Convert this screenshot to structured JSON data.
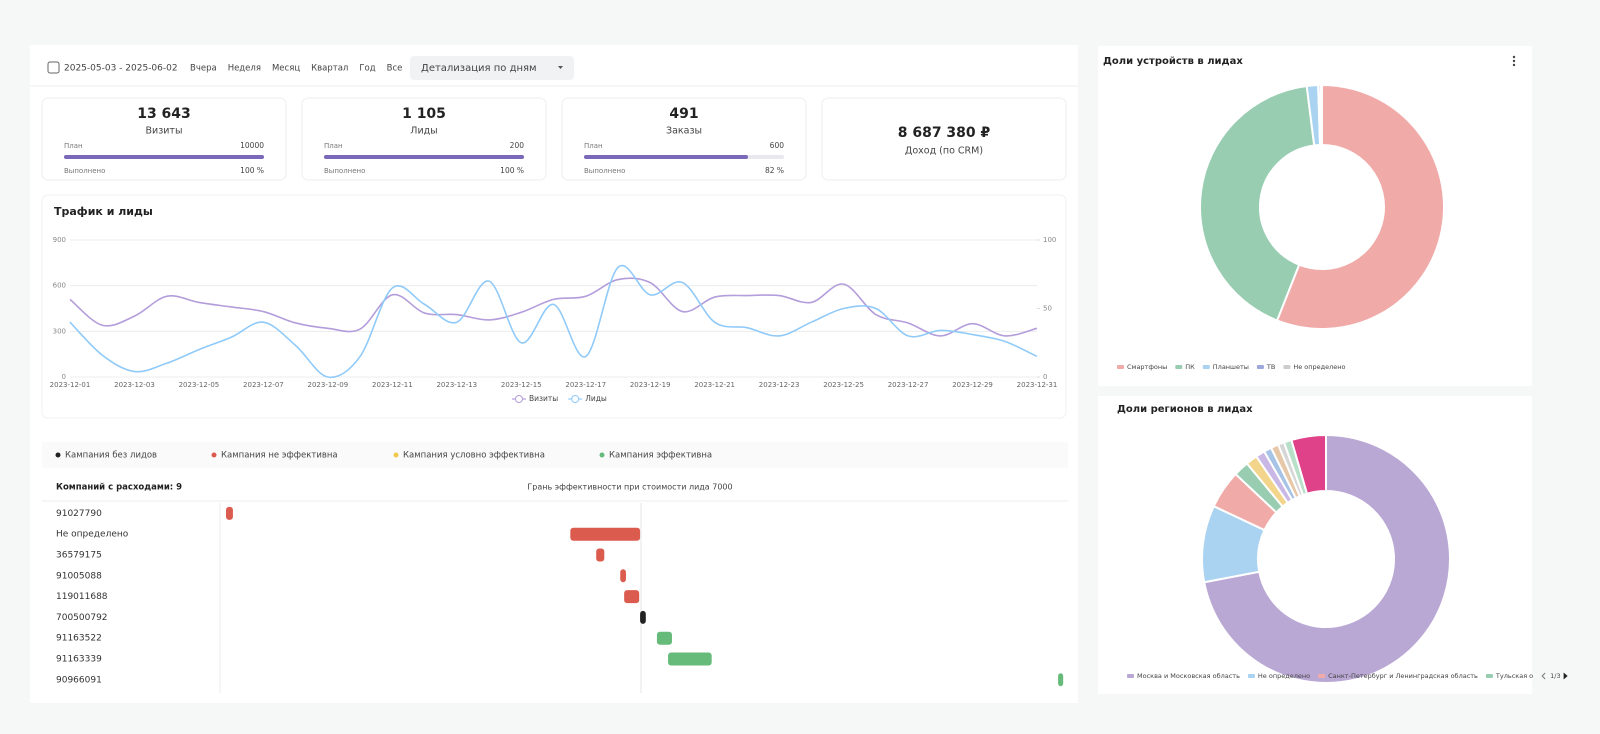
{
  "toolbar": {
    "date_range": "2025-05-03 - 2025-06-02",
    "periods": [
      "Вчера",
      "Неделя",
      "Месяц",
      "Квартал",
      "Год",
      "Все"
    ],
    "detail": "Детализация по дням"
  },
  "kpis": [
    {
      "value": "13 643",
      "label": "Визиты",
      "plan_label": "План",
      "plan": 10000,
      "done_label": "Выполнено",
      "done": {
        "value": 100,
        "label": "100 %"
      }
    },
    {
      "value": "1 105",
      "label": "Лиды",
      "plan_label": "План",
      "plan": 200,
      "done_label": "Выполнено",
      "done": {
        "value": 100,
        "label": "100 %"
      }
    },
    {
      "value": "491",
      "label": "Заказы",
      "plan_label": "План",
      "plan": 600,
      "done_label": "Выполнено",
      "done": {
        "value": 82,
        "label": "82 %"
      }
    },
    {
      "value": "8 687 380 ₽",
      "label": "Доход (по CRM)"
    }
  ],
  "chart_data": [
    {
      "type": "line",
      "title": "Трафик и лиды",
      "categories": [
        "2023-12-01",
        null,
        "2023-12-03",
        null,
        "2023-12-05",
        null,
        "2023-12-07",
        null,
        "2023-12-09",
        null,
        "2023-12-11",
        null,
        "2023-12-13",
        null,
        "2023-12-15",
        null,
        "2023-12-17",
        null,
        "2023-12-19",
        null,
        "2023-12-21",
        null,
        "2023-12-23",
        null,
        "2023-12-25",
        null,
        "2023-12-27",
        null,
        "2023-12-29",
        null,
        "2023-12-31"
      ],
      "series": [
        {
          "name": "Визиты",
          "color": "#b39ddb",
          "values": [
            510,
            340,
            400,
            530,
            490,
            460,
            430,
            355,
            320,
            315,
            540,
            420,
            410,
            375,
            425,
            510,
            530,
            640,
            620,
            430,
            525,
            535,
            535,
            490,
            610,
            410,
            355,
            270,
            350,
            270,
            320
          ]
        },
        {
          "name": "Лиды",
          "color": "#90caf9",
          "axis": "y2",
          "values": [
            40,
            16,
            4,
            10,
            20,
            29,
            40,
            23,
            0,
            15,
            65,
            53,
            40,
            70,
            25,
            53,
            15,
            80,
            60,
            69,
            40,
            36,
            30,
            40,
            50,
            50,
            30,
            34,
            31,
            26,
            15
          ]
        }
      ],
      "ylim": [
        0,
        900
      ],
      "yticks": [
        0,
        300,
        600,
        900
      ],
      "y2lim": [
        0,
        100
      ],
      "y2ticks": [
        0,
        50,
        100
      ],
      "grid": true,
      "legend": "bottom"
    },
    {
      "type": "range-bar",
      "orientation": "horizontal",
      "title": "Компаний с расходами: 9",
      "subtitle": "Грань эффективности при стоимости лида 7000",
      "threshold": 7000,
      "categories": [
        "91027790",
        "Не определено",
        "36579175",
        "91005088",
        "119011688",
        "700500792",
        "91163522",
        "91163339",
        "90966091"
      ],
      "series": [
        {
          "name": "Кампания без лидов",
          "color": "#222222",
          "values": [
            null,
            null,
            null,
            null,
            null,
            [
              6985,
              7080
            ],
            null,
            null,
            null
          ]
        },
        {
          "name": "Кампания не эффективна",
          "color": "#dc5b4f",
          "values": [
            [
              100,
              215
            ],
            [
              5825,
              6985
            ],
            [
              6255,
              6390
            ],
            [
              6655,
              6750
            ],
            [
              6720,
              6970
            ],
            null,
            null,
            null,
            null
          ]
        },
        {
          "name": "Кампания условно эффективна",
          "color": "#f2c94c",
          "values": [
            null,
            null,
            null,
            null,
            null,
            null,
            null,
            null,
            null
          ]
        },
        {
          "name": "Кампания эффективна",
          "color": "#66bb7a",
          "values": [
            null,
            null,
            null,
            null,
            null,
            null,
            [
              7265,
              7515
            ],
            [
              7450,
              8175
            ],
            [
              13935,
              14020
            ]
          ]
        }
      ],
      "xlim": [
        0,
        14100
      ],
      "legend": "top"
    },
    {
      "type": "pie",
      "donut": true,
      "title": "Доли устройств в лидах",
      "categories": [
        "Смартфоны",
        "ПК",
        "Планшеты",
        "ТВ",
        "Не определено"
      ],
      "values": [
        56,
        42,
        1.5,
        0.3,
        0.2
      ],
      "colors": [
        "#f0aaa8",
        "#98cdb1",
        "#a9d3f0",
        "#9fa8da",
        "#cccccc"
      ],
      "legend": "bottom"
    },
    {
      "type": "pie",
      "donut": true,
      "title": "Доли регионов в лидах",
      "categories": [
        "Москва и Московская область",
        "Не определено",
        "Санкт-Петербург и Ленинградская область",
        "Тульская о",
        null,
        null,
        null,
        null,
        null,
        null,
        null
      ],
      "values": [
        72,
        10,
        5,
        2,
        1.5,
        1.2,
        1,
        1,
        0.8,
        1,
        4.5
      ],
      "colors": [
        "#b9a7d4",
        "#a9d3f0",
        "#f0aaa8",
        "#98cdb1",
        "#f2d58a",
        "#c9b8e6",
        "#a7c4e6",
        "#e6c7a7",
        "#d6d6d6",
        "#b8e0c8",
        "#e0428a"
      ],
      "legend": "bottom",
      "legend_page": "1/3"
    }
  ]
}
